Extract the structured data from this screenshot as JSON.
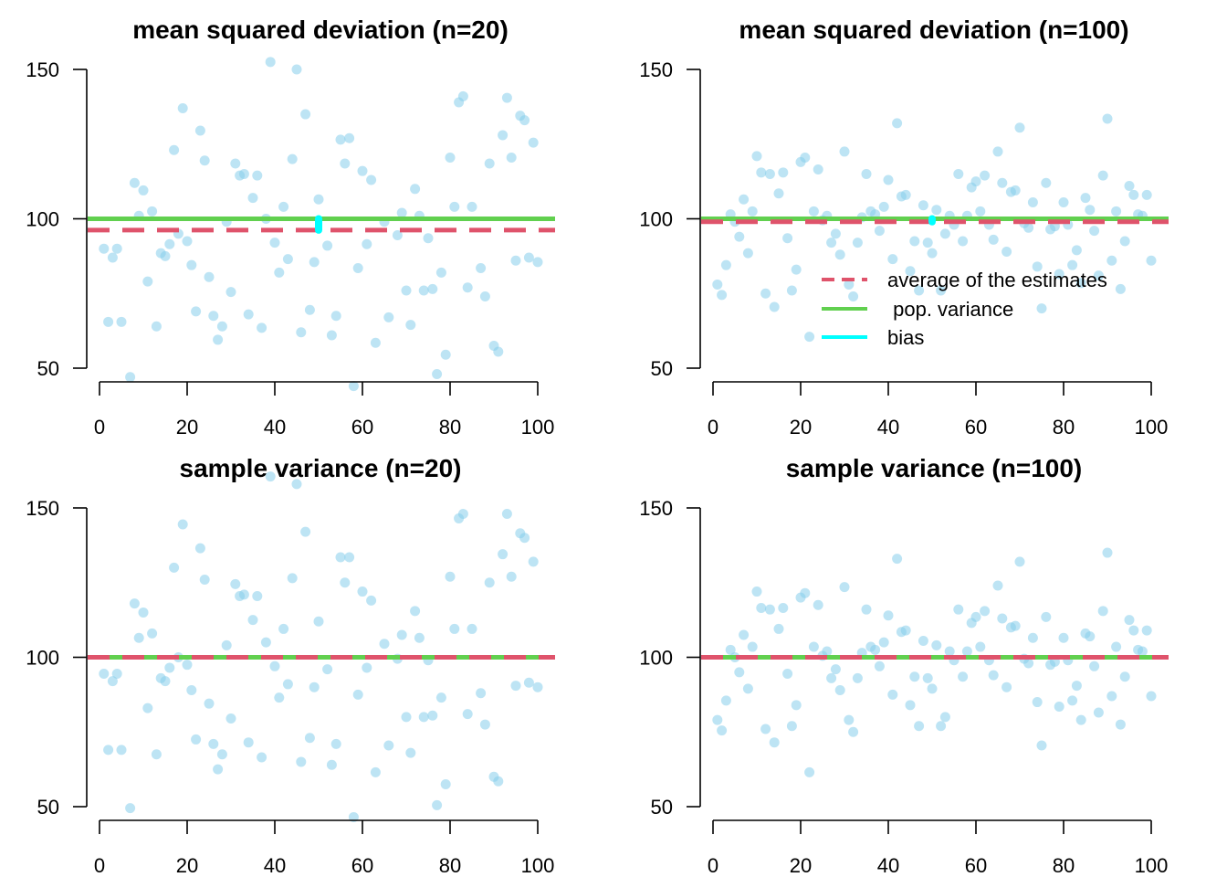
{
  "colors": {
    "points": "#87CEEB",
    "average": "#DF536B",
    "population": "#61D04F",
    "bias": "#00FFFF"
  },
  "chart_data": [
    {
      "type": "scatter",
      "title": "mean squared deviation (n=20)",
      "xlim": [
        0,
        100
      ],
      "ylim": [
        50,
        150
      ],
      "xticks": [
        "0",
        "20",
        "40",
        "60",
        "80",
        "100"
      ],
      "yticks": [
        "50",
        "100",
        "150"
      ],
      "population_variance": 100,
      "average_estimate": 96.2,
      "bias": {
        "x": 50,
        "from": 96.2,
        "to": 100
      },
      "points": [
        90,
        65.5,
        87,
        90,
        65.5,
        null,
        47,
        112,
        101,
        109.5,
        79,
        102.5,
        64,
        88.5,
        87.5,
        91.5,
        123,
        95,
        137,
        92.5,
        84.5,
        69,
        129.5,
        119.5,
        80.5,
        67.5,
        59.5,
        64,
        99,
        75.5,
        118.5,
        114.5,
        115,
        68,
        107,
        114.5,
        63.5,
        100,
        152.5,
        92,
        82,
        104,
        86.5,
        120,
        150,
        62,
        135,
        69.5,
        85.5,
        106.5,
        null,
        91,
        61,
        67.5,
        126.5,
        118.5,
        127,
        44,
        83.5,
        116,
        91.5,
        113,
        58.5,
        null,
        99,
        67,
        null,
        94.5,
        102,
        76,
        64.5,
        110,
        101,
        76,
        93.5,
        76.5,
        48,
        82,
        54.5,
        120.5,
        104,
        139,
        141,
        77,
        104,
        null,
        83.5,
        74,
        118.5,
        57.5,
        55.5,
        128,
        140.5,
        120.5,
        86,
        134.5,
        133,
        87,
        125.5,
        85.5
      ]
    },
    {
      "type": "scatter",
      "title": "mean squared deviation (n=100)",
      "xlim": [
        0,
        100
      ],
      "ylim": [
        50,
        150
      ],
      "xticks": [
        "0",
        "20",
        "40",
        "60",
        "80",
        "100"
      ],
      "yticks": [
        "50",
        "100",
        "150"
      ],
      "population_variance": 100,
      "average_estimate": 99,
      "bias": {
        "x": 50,
        "from": 99,
        "to": 100
      },
      "legend": {
        "position": "right",
        "entries": [
          {
            "label": "average of the estimates",
            "key": "average"
          },
          {
            "label": " pop. variance",
            "key": "population"
          },
          {
            "label": "bias",
            "key": "bias"
          }
        ]
      },
      "points": [
        78,
        74.5,
        84.5,
        101.5,
        99,
        94,
        106.5,
        88.5,
        102.5,
        121,
        115.5,
        75,
        115,
        70.5,
        108.5,
        115.5,
        93.5,
        76,
        83,
        119,
        120.5,
        60.5,
        102.5,
        116.5,
        99.5,
        101,
        92,
        95,
        88,
        122.5,
        78,
        74,
        92,
        100.5,
        115,
        102.5,
        101.5,
        96,
        104,
        113,
        86.5,
        132,
        107.5,
        108,
        82.5,
        92.5,
        76,
        104.5,
        92,
        88.5,
        103,
        76,
        95,
        101,
        98,
        115,
        92.5,
        101,
        110.5,
        112.5,
        102.5,
        114.5,
        98,
        93,
        122.5,
        112,
        89,
        109,
        109.5,
        130.5,
        98.5,
        97,
        105.5,
        84,
        70,
        112,
        96.5,
        97.5,
        81.5,
        105.5,
        98,
        84.5,
        89.5,
        78.5,
        107,
        103,
        96,
        81,
        114.5,
        133.5,
        86,
        102.5,
        76.5,
        92.5,
        111,
        108,
        101.5,
        101,
        108,
        86
      ]
    },
    {
      "type": "scatter",
      "title": "sample variance (n=20)",
      "xlim": [
        0,
        100
      ],
      "ylim": [
        50,
        150
      ],
      "xticks": [
        "0",
        "20",
        "40",
        "60",
        "80",
        "100"
      ],
      "yticks": [
        "50",
        "100",
        "150"
      ],
      "population_variance": 100,
      "average_estimate": 100,
      "points": [
        94.5,
        69,
        92,
        94.5,
        69,
        null,
        49.5,
        118,
        106.5,
        115,
        83,
        108,
        67.5,
        93,
        92,
        96.5,
        130,
        100,
        144.5,
        97.5,
        89,
        72.5,
        136.5,
        126,
        84.5,
        71,
        62.5,
        67.5,
        104,
        79.5,
        124.5,
        120.5,
        121,
        71.5,
        112.5,
        120.5,
        66.5,
        105,
        160.5,
        97,
        86.5,
        109.5,
        91,
        126.5,
        158,
        65,
        142,
        73,
        90,
        112,
        null,
        96,
        64,
        71,
        133.5,
        125,
        133.5,
        46.5,
        87.5,
        122,
        96.5,
        119,
        61.5,
        null,
        104.5,
        70.5,
        null,
        99.5,
        107.5,
        80,
        68,
        115.5,
        106.5,
        80,
        99,
        80.5,
        50.5,
        86.5,
        57.5,
        127,
        109.5,
        146.5,
        148,
        81,
        109.5,
        null,
        88,
        77.5,
        125,
        60,
        58.5,
        134.5,
        148,
        127,
        90.5,
        141.5,
        140,
        91.5,
        132,
        90
      ]
    },
    {
      "type": "scatter",
      "title": "sample variance (n=100)",
      "xlim": [
        0,
        100
      ],
      "ylim": [
        50,
        150
      ],
      "xticks": [
        "0",
        "20",
        "40",
        "60",
        "80",
        "100"
      ],
      "yticks": [
        "50",
        "100",
        "150"
      ],
      "population_variance": 100,
      "average_estimate": 100,
      "points": [
        79,
        75.5,
        85.5,
        102.5,
        100,
        95,
        107.5,
        89.5,
        103.5,
        122,
        116.5,
        76,
        116,
        71.5,
        109.5,
        116.5,
        94.5,
        77,
        84,
        120,
        121.5,
        61.5,
        103.5,
        117.5,
        100.5,
        102,
        93,
        96,
        89,
        123.5,
        79,
        75,
        93,
        101.5,
        116,
        103.5,
        102.5,
        97,
        105,
        114,
        87.5,
        133,
        108.5,
        109,
        84,
        93.5,
        77,
        105.5,
        93,
        89.5,
        104,
        77,
        80,
        102,
        99,
        116,
        93.5,
        102,
        111.5,
        113.5,
        103.5,
        115.5,
        99,
        94,
        124,
        113,
        90,
        110,
        110.5,
        132,
        99.5,
        98,
        106.5,
        85,
        70.5,
        113.5,
        97.5,
        98.5,
        83.5,
        106.5,
        99,
        85.5,
        90.5,
        79,
        108,
        107,
        97,
        81.5,
        115.5,
        135,
        87,
        103.5,
        77.5,
        93.5,
        112.5,
        109,
        102.5,
        102,
        109,
        87
      ]
    }
  ]
}
